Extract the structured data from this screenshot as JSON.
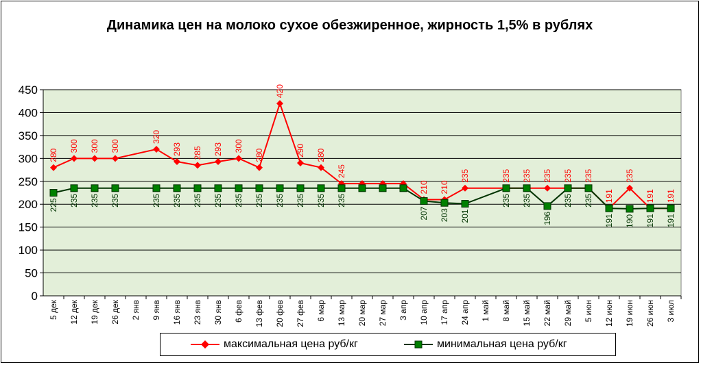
{
  "title": "Динамика цен на молоко сухое обезжиренное, жирность 1,5% в рублях",
  "colors": {
    "max_line": "#ff0000",
    "min_line": "#003300",
    "min_marker": "#008000",
    "plot_bg": "#e3efd9",
    "grid": "#000000"
  },
  "chart_data": {
    "type": "line",
    "title": "Динамика цен на молоко сухое обезжиренное, жирность 1,5% в рублях",
    "xlabel": "",
    "ylabel": "",
    "ylim": [
      0,
      450
    ],
    "yticks": [
      0,
      50,
      100,
      150,
      200,
      250,
      300,
      350,
      400,
      450
    ],
    "grid": true,
    "legend_position": "bottom",
    "categories": [
      "5 дек",
      "12 дек",
      "19 дек",
      "26 дек",
      "2 янв",
      "9 янв",
      "16 янв",
      "23 янв",
      "30 янв",
      "6 фев",
      "13 фев",
      "20 фев",
      "27 фев",
      "6 мар",
      "13 мар",
      "20 мар",
      "27 мар",
      "3 апр",
      "10 апр",
      "17 апр",
      "24 апр",
      "1 май",
      "8 май",
      "15 май",
      "22 май",
      "29 май",
      "5 июн",
      "12 июн",
      "19 июн",
      "26 июн",
      "3 июл"
    ],
    "series": [
      {
        "name": "максимальная цена руб/кг",
        "marker": "diamond",
        "values": [
          280,
          300,
          300,
          300,
          null,
          320,
          293,
          285,
          293,
          300,
          280,
          420,
          290,
          280,
          245,
          245,
          245,
          245,
          210,
          210,
          235,
          null,
          235,
          235,
          235,
          235,
          235,
          191,
          235,
          191,
          191
        ],
        "labels": [
          "280",
          "300",
          "300",
          "300",
          "",
          "320",
          "293",
          "285",
          "293",
          "300",
          "280",
          "420",
          "290",
          "280",
          "245",
          "",
          "",
          "",
          "210",
          "210",
          "235",
          "",
          "235",
          "235",
          "235",
          "235",
          "235",
          "191",
          "235",
          "191",
          "191"
        ]
      },
      {
        "name": "минимальная цена руб/кг",
        "marker": "square",
        "values": [
          225,
          235,
          235,
          235,
          null,
          235,
          235,
          235,
          235,
          235,
          235,
          235,
          235,
          235,
          235,
          235,
          235,
          235,
          207,
          203,
          201,
          null,
          235,
          235,
          196,
          235,
          235,
          191,
          190,
          191,
          191
        ],
        "labels": [
          "225",
          "235",
          "235",
          "235",
          "",
          "235",
          "235",
          "235",
          "235",
          "235",
          "235",
          "235",
          "235",
          "235",
          "235",
          "",
          "",
          "",
          "207",
          "203",
          "201",
          "",
          "235",
          "235",
          "196",
          "235",
          "235",
          "191",
          "190",
          "191",
          "191"
        ]
      }
    ]
  },
  "legend": {
    "max_label": "максимальная цена руб/кг",
    "min_label": "минимальная цена руб/кг"
  }
}
